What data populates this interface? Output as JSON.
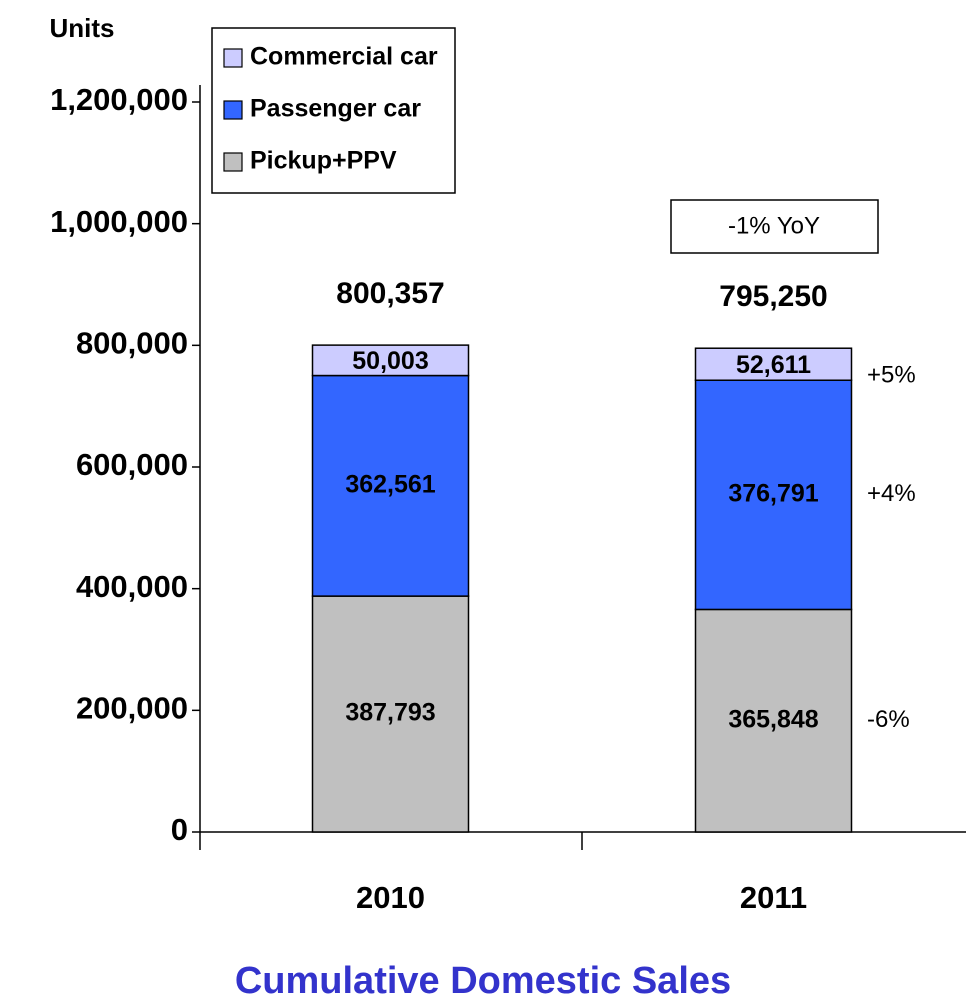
{
  "chart_data": {
    "type": "stacked_bar",
    "title": "Cumulative Domestic Sales",
    "y_axis_label": "Units",
    "categories": [
      "2010",
      "2011"
    ],
    "series": [
      {
        "name": "Pickup+PPV",
        "color": "#c0c0c0",
        "values": [
          387793,
          365848
        ],
        "value_labels": [
          "387,793",
          "365,848"
        ]
      },
      {
        "name": "Passenger car",
        "color": "#3366ff",
        "values": [
          362561,
          376791
        ],
        "value_labels": [
          "362,561",
          "376,791"
        ]
      },
      {
        "name": "Commercial car",
        "color": "#ccccff",
        "values": [
          50003,
          52611
        ],
        "value_labels": [
          "50,003",
          "52,611"
        ]
      }
    ],
    "totals": [
      800357,
      795250
    ],
    "totals_labels": [
      "800,357",
      "795,250"
    ],
    "growth_labels": [
      "-6%",
      "+4%",
      "+5%"
    ],
    "yoy_label": "-1% YoY",
    "ylim": [
      0,
      1200000
    ],
    "yticks": [
      0,
      {
        "value": 200000,
        "label": "200,000"
      },
      {
        "value": 400000,
        "label": "400,000"
      },
      {
        "value": 600000,
        "label": "600,000"
      },
      {
        "value": 800000,
        "label": "800,000"
      },
      {
        "value": 1000000,
        "label": "1,000,000"
      },
      {
        "value": 1200000,
        "label": "1,200,000"
      }
    ],
    "grid": false,
    "legend": "top-left"
  }
}
